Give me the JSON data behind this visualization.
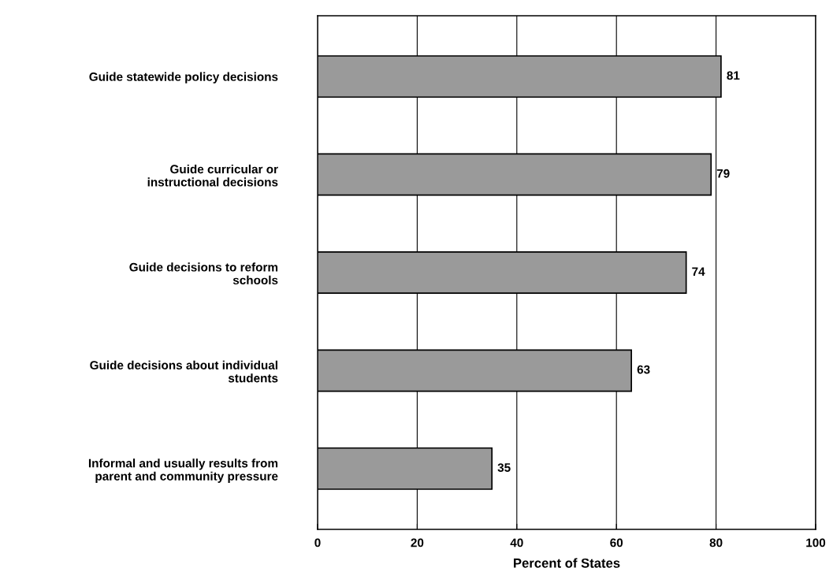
{
  "chart_data": {
    "type": "bar",
    "orientation": "horizontal",
    "xlabel": "Percent of States",
    "categories": [
      "Guide statewide policy decisions",
      "Guide curricular or\ninstructional decisions",
      "Guide decisions to reform\nschools",
      "Guide decisions about individual\nstudents",
      "Informal and usually results from\nparent and community pressure"
    ],
    "values": [
      81,
      79,
      74,
      63,
      35
    ],
    "color": "#9a9a9a",
    "data_labels": true,
    "xlim": [
      0,
      100
    ],
    "xticks": [
      0,
      20,
      40,
      60,
      80,
      100
    ],
    "grid": "x"
  }
}
